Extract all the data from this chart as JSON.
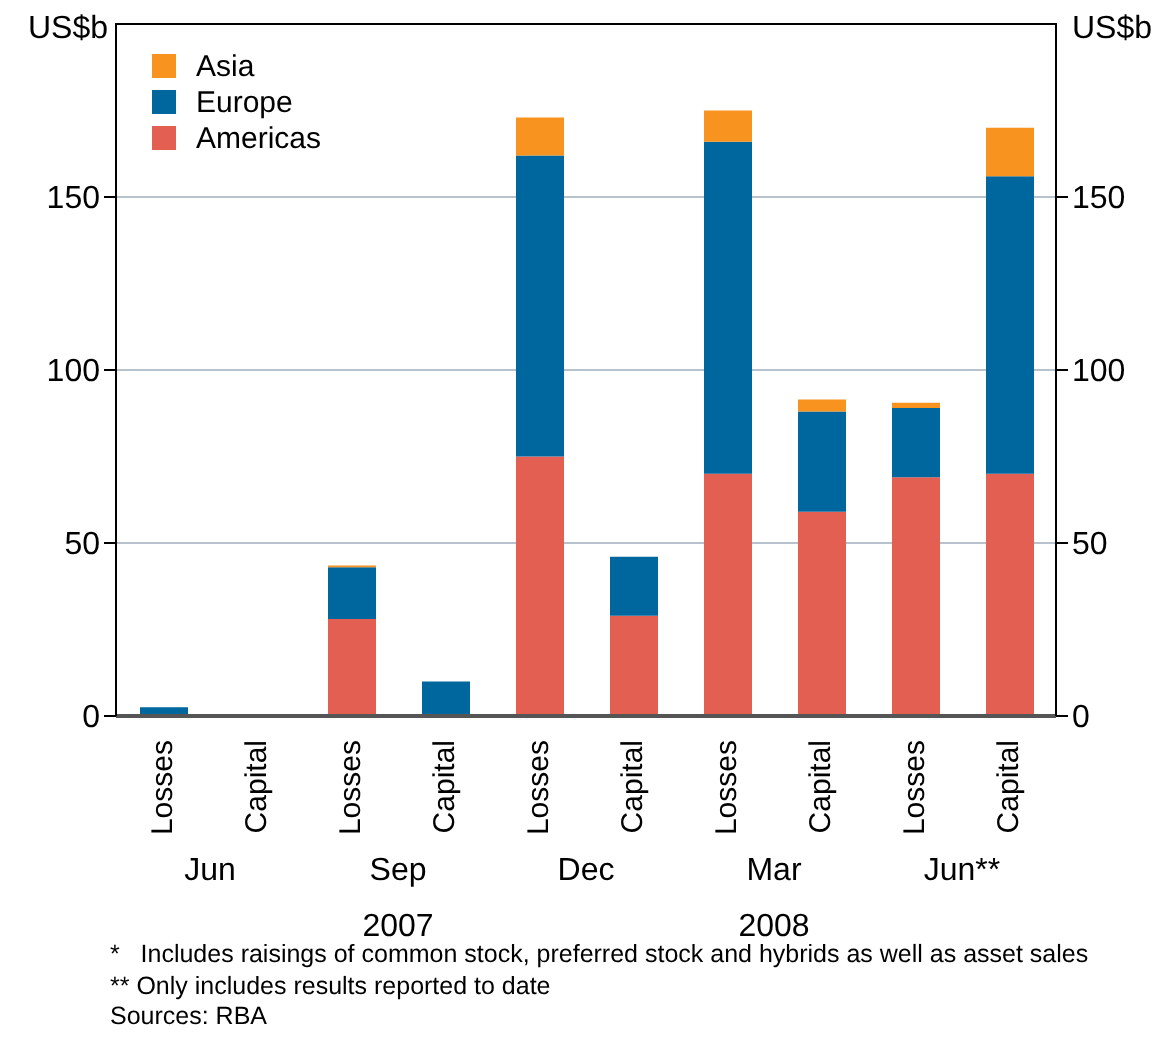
{
  "chart_data": {
    "type": "bar",
    "stacked": true,
    "categories": [
      "Losses",
      "Capital",
      "Losses",
      "Capital",
      "Losses",
      "Capital",
      "Losses",
      "Capital",
      "Losses",
      "Capital"
    ],
    "series": [
      {
        "name": "Americas",
        "color": "#e35f52",
        "values": [
          null,
          0,
          28,
          null,
          75,
          29,
          70,
          59,
          69,
          70
        ]
      },
      {
        "name": "Europe",
        "color": "#00669e",
        "values": [
          2.5,
          0,
          15,
          10,
          87,
          17,
          96,
          29,
          20,
          86
        ]
      },
      {
        "name": "Asia",
        "color": "#f7931e",
        "values": [
          0,
          0,
          0.5,
          0,
          11,
          0,
          9,
          3.5,
          1.5,
          14
        ]
      }
    ],
    "ylabel": "US$b",
    "y2label": "US$b",
    "ylim": [
      0,
      200
    ],
    "yticks": [
      0,
      50,
      100,
      150
    ],
    "y2lim": [
      0,
      200
    ],
    "y2ticks": [
      0,
      50,
      100,
      150
    ],
    "grid": "y",
    "legend": "top left",
    "annotations": [
      "Jun",
      "Sep",
      "Dec",
      "Mar",
      "Jun**",
      "2007",
      "2008",
      "*   Includes raisings of common stock, preferred stock and hybrids as well as asset sales",
      "** Only includes results reported to date",
      "Sources: RBA"
    ]
  }
}
